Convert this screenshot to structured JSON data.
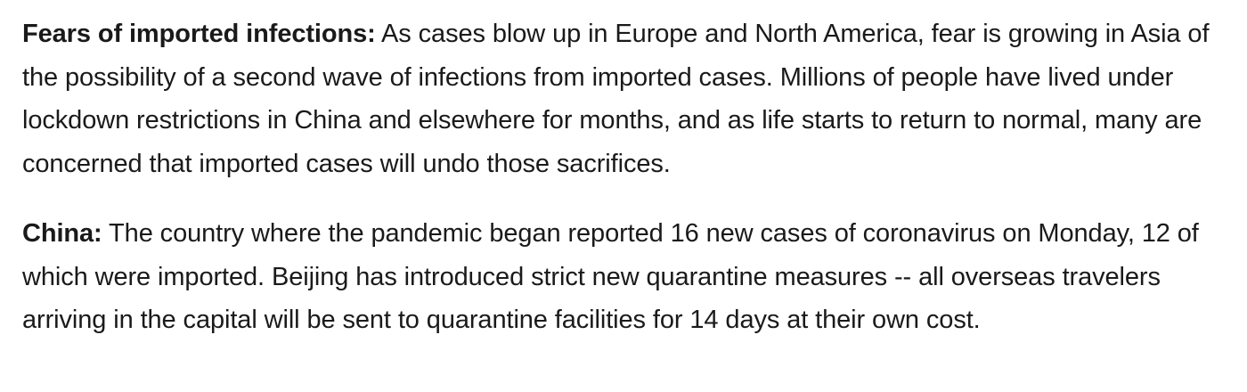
{
  "paragraphs": [
    {
      "lead": "Fears of imported infections:",
      "text": " As cases blow up in Europe and North America, fear is growing in Asia of the possibility of a second wave of infections from imported cases. Millions of people have lived under lockdown restrictions in China and elsewhere for months, and as life starts to return to normal, many are concerned that imported cases will undo those sacrifices."
    },
    {
      "lead": "China:",
      "text": " The country where the pandemic began reported 16 new cases of coronavirus on Monday, 12 of which were imported. Beijing has introduced strict new quarantine measures -- all overseas travelers arriving in the capital will be sent to quarantine facilities for 14 days at their own cost."
    }
  ]
}
